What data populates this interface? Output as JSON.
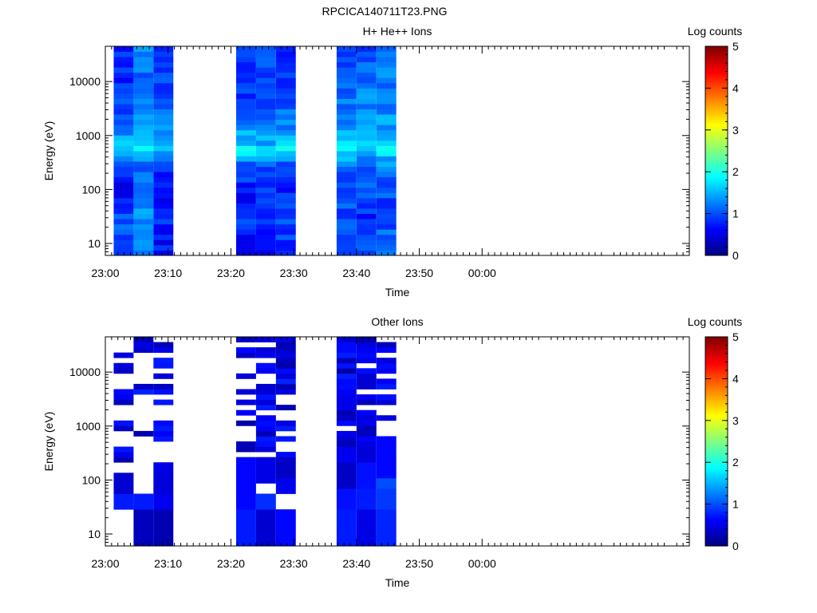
{
  "page_title": "RPCICA140711T23.PNG",
  "chart_data": [
    {
      "type": "heatmap",
      "title": "H+ He++ Ions",
      "xlabel": "Time",
      "ylabel": "Energy (eV)",
      "x_ticks": [
        "23:00",
        "23:10",
        "23:20",
        "23:30",
        "23:40",
        "23:50",
        "00:00"
      ],
      "y_scale": "log",
      "y_ticks": [
        "10",
        "100",
        "1000",
        "10000"
      ],
      "ylim": [
        6,
        45000
      ],
      "colorbar": {
        "label": "Log counts",
        "ticks": [
          "0",
          "1",
          "2",
          "3",
          "4",
          "5"
        ],
        "range": [
          0,
          5
        ]
      },
      "segments": [
        {
          "start": "23:01:20",
          "end": "23:04:30",
          "profile": [
            [
              10,
              1.0
            ],
            [
              30,
              1.1
            ],
            [
              80,
              0.6
            ],
            [
              120,
              0.5
            ],
            [
              200,
              0.9
            ],
            [
              350,
              1.1
            ],
            [
              550,
              1.8
            ],
            [
              700,
              1.6
            ],
            [
              1500,
              1.2
            ],
            [
              3000,
              1.0
            ],
            [
              8000,
              0.8
            ],
            [
              20000,
              0.9
            ],
            [
              40000,
              0.8
            ]
          ]
        },
        {
          "start": "23:04:30",
          "end": "23:07:40",
          "profile": [
            [
              10,
              1.3
            ],
            [
              30,
              1.4
            ],
            [
              80,
              1.1
            ],
            [
              200,
              1.1
            ],
            [
              350,
              1.3
            ],
            [
              550,
              1.9
            ],
            [
              700,
              1.6
            ],
            [
              1500,
              1.4
            ],
            [
              3000,
              1.3
            ],
            [
              8000,
              1.1
            ],
            [
              20000,
              1.2
            ],
            [
              40000,
              1.4
            ]
          ]
        },
        {
          "start": "23:07:40",
          "end": "23:10:50",
          "profile": [
            [
              10,
              0.7
            ],
            [
              30,
              0.8
            ],
            [
              80,
              0.5
            ],
            [
              120,
              0.7
            ],
            [
              200,
              0.8
            ],
            [
              350,
              1.0
            ],
            [
              550,
              1.8
            ],
            [
              700,
              1.5
            ],
            [
              1500,
              1.2
            ],
            [
              3000,
              1.1
            ],
            [
              8000,
              0.9
            ],
            [
              20000,
              1.0
            ],
            [
              40000,
              1.0
            ]
          ]
        },
        {
          "start": "23:20:50",
          "end": "23:24:00",
          "profile": [
            [
              10,
              0.6
            ],
            [
              30,
              0.9
            ],
            [
              80,
              0.6
            ],
            [
              150,
              0.9
            ],
            [
              300,
              1.1
            ],
            [
              550,
              1.9
            ],
            [
              700,
              1.6
            ],
            [
              1500,
              1.3
            ],
            [
              3000,
              1.1
            ],
            [
              8000,
              0.8
            ],
            [
              20000,
              0.9
            ],
            [
              40000,
              1.0
            ]
          ]
        },
        {
          "start": "23:24:00",
          "end": "23:27:10",
          "profile": [
            [
              10,
              0.6
            ],
            [
              30,
              0.8
            ],
            [
              80,
              0.8
            ],
            [
              150,
              0.9
            ],
            [
              300,
              1.1
            ],
            [
              550,
              1.8
            ],
            [
              700,
              1.5
            ],
            [
              1500,
              1.2
            ],
            [
              3000,
              1.0
            ],
            [
              8000,
              0.9
            ],
            [
              20000,
              1.0
            ],
            [
              40000,
              0.9
            ]
          ]
        },
        {
          "start": "23:27:10",
          "end": "23:30:20",
          "profile": [
            [
              10,
              0.9
            ],
            [
              30,
              1.0
            ],
            [
              80,
              0.8
            ],
            [
              150,
              0.7
            ],
            [
              300,
              1.0
            ],
            [
              550,
              1.8
            ],
            [
              700,
              1.6
            ],
            [
              1500,
              1.3
            ],
            [
              3000,
              1.1
            ],
            [
              8000,
              0.9
            ],
            [
              20000,
              0.8
            ],
            [
              40000,
              0.9
            ]
          ]
        },
        {
          "start": "23:36:50",
          "end": "23:40:00",
          "profile": [
            [
              10,
              1.0
            ],
            [
              30,
              1.0
            ],
            [
              80,
              1.0
            ],
            [
              150,
              1.0
            ],
            [
              300,
              1.2
            ],
            [
              600,
              1.9
            ],
            [
              900,
              1.5
            ],
            [
              1500,
              1.3
            ],
            [
              3000,
              1.2
            ],
            [
              8000,
              1.1
            ],
            [
              20000,
              1.0
            ],
            [
              40000,
              0.9
            ]
          ]
        },
        {
          "start": "23:40:00",
          "end": "23:43:10",
          "profile": [
            [
              10,
              1.0
            ],
            [
              30,
              0.8
            ],
            [
              80,
              1.1
            ],
            [
              150,
              1.0
            ],
            [
              300,
              1.2
            ],
            [
              600,
              1.8
            ],
            [
              900,
              1.6
            ],
            [
              1500,
              1.4
            ],
            [
              3000,
              1.3
            ],
            [
              8000,
              1.2
            ],
            [
              20000,
              1.1
            ],
            [
              40000,
              1.0
            ]
          ]
        },
        {
          "start": "23:43:10",
          "end": "23:46:20",
          "profile": [
            [
              10,
              1.3
            ],
            [
              30,
              0.8
            ],
            [
              80,
              1.0
            ],
            [
              150,
              1.1
            ],
            [
              300,
              1.3
            ],
            [
              600,
              1.9
            ],
            [
              900,
              1.6
            ],
            [
              1500,
              1.4
            ],
            [
              3000,
              1.3
            ],
            [
              8000,
              1.2
            ],
            [
              20000,
              1.2
            ],
            [
              40000,
              1.1
            ]
          ]
        }
      ]
    },
    {
      "type": "heatmap",
      "title": "Other Ions",
      "xlabel": "Time",
      "ylabel": "Energy (eV)",
      "x_ticks": [
        "23:00",
        "23:10",
        "23:20",
        "23:30",
        "23:40",
        "23:50",
        "00:00"
      ],
      "y_scale": "log",
      "y_ticks": [
        "10",
        "100",
        "1000",
        "10000"
      ],
      "ylim": [
        6,
        45000
      ],
      "colorbar": {
        "label": "Log counts",
        "ticks": [
          "0",
          "1",
          "2",
          "3",
          "4",
          "5"
        ],
        "range": [
          0,
          5
        ]
      },
      "segments": [
        {
          "start": "23:01:20",
          "end": "23:04:30",
          "sparse_above": 130,
          "fill": 0.45,
          "bands": [
            [
              27,
              55,
              0.75
            ],
            [
              55,
              130,
              0.4
            ]
          ]
        },
        {
          "start": "23:04:30",
          "end": "23:07:40",
          "sparse_above": 200,
          "fill": 0.3,
          "bands": [
            [
              6,
              27,
              0.3
            ],
            [
              27,
              55,
              0.75
            ]
          ]
        },
        {
          "start": "23:07:40",
          "end": "23:10:50",
          "sparse_above": 230,
          "fill": 0.5,
          "bands": [
            [
              6,
              27,
              0.25
            ],
            [
              27,
              60,
              0.55
            ],
            [
              60,
              130,
              0.45
            ],
            [
              130,
              230,
              0.5
            ]
          ]
        },
        {
          "start": "23:20:50",
          "end": "23:24:00",
          "sparse_above": 240,
          "fill": 0.5,
          "bands": [
            [
              6,
              27,
              0.75
            ],
            [
              27,
              240,
              0.65
            ]
          ]
        },
        {
          "start": "23:24:00",
          "end": "23:27:10",
          "sparse_above": 240,
          "fill": 0.6,
          "bands": [
            [
              6,
              27,
              0.4
            ],
            [
              27,
              60,
              0.85
            ],
            [
              85,
              240,
              0.5
            ]
          ]
        },
        {
          "start": "23:27:10",
          "end": "23:30:20",
          "sparse_above": 240,
          "fill": 0.7,
          "bands": [
            [
              6,
              27,
              0.65
            ],
            [
              60,
              100,
              0.55
            ],
            [
              100,
              500,
              0.35
            ]
          ]
        },
        {
          "start": "23:36:50",
          "end": "23:40:00",
          "sparse_above": 450,
          "fill": 0.75,
          "bands": [
            [
              6,
              27,
              0.75
            ],
            [
              27,
              70,
              0.7
            ],
            [
              70,
              200,
              0.35
            ],
            [
              200,
              450,
              0.55
            ]
          ]
        },
        {
          "start": "23:40:00",
          "end": "23:43:10",
          "sparse_above": 450,
          "fill": 0.8,
          "bands": [
            [
              6,
              27,
              0.5
            ],
            [
              27,
              70,
              0.75
            ],
            [
              70,
              200,
              0.7
            ],
            [
              200,
              450,
              0.45
            ]
          ]
        },
        {
          "start": "23:43:10",
          "end": "23:46:20",
          "sparse_above": 600,
          "fill": 0.7,
          "bands": [
            [
              6,
              27,
              0.8
            ],
            [
              27,
              70,
              0.9
            ],
            [
              70,
              120,
              1.0
            ],
            [
              120,
              600,
              0.65
            ]
          ]
        }
      ]
    }
  ]
}
